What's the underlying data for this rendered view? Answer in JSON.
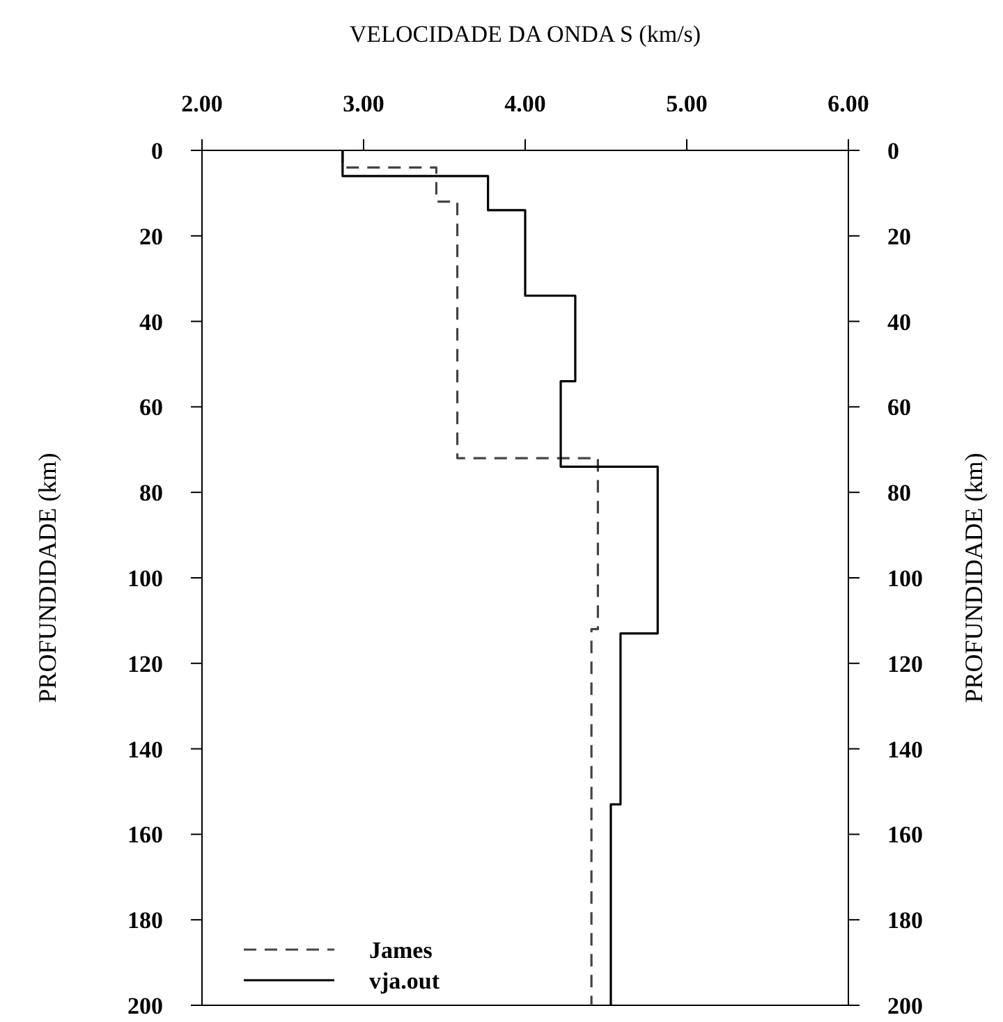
{
  "chart_data": {
    "type": "line",
    "title": "VELOCIDADE DA ONDA S (km/s)",
    "ylabel": "PROFUNDIDADE (km)",
    "y2label": "PROFUNDIDADE (km)",
    "xlim": [
      2,
      6
    ],
    "xticks": [
      {
        "value": 2,
        "label": "2.00"
      },
      {
        "value": 3,
        "label": "3.00"
      },
      {
        "value": 4,
        "label": "4.00"
      },
      {
        "value": 5,
        "label": "5.00"
      },
      {
        "value": 6,
        "label": "6.00"
      }
    ],
    "ylim": [
      200,
      0
    ],
    "yticks": [
      0,
      20,
      40,
      60,
      80,
      100,
      120,
      140,
      160,
      180,
      200
    ],
    "y2lim": [
      200,
      0
    ],
    "y2ticks": [
      0,
      20,
      40,
      60,
      80,
      100,
      120,
      140,
      160,
      180,
      200
    ],
    "legend": "bottom left",
    "grid": false,
    "series": [
      {
        "name": "James",
        "color": "#444444",
        "line_style": "dashed",
        "x": [
          2.87,
          2.87,
          3.45,
          3.45,
          3.58,
          3.58,
          4.45,
          4.45,
          4.41,
          4.41
        ],
        "values": [
          0,
          4,
          4,
          12,
          12,
          72,
          72,
          112,
          112,
          200
        ]
      },
      {
        "name": "vja.out",
        "color": "#000000",
        "line_style": "solid",
        "x": [
          2.87,
          2.87,
          3.77,
          3.77,
          4.0,
          4.0,
          4.31,
          4.31,
          4.22,
          4.22,
          4.82,
          4.82,
          4.59,
          4.59,
          4.53,
          4.53
        ],
        "values": [
          0,
          6,
          6,
          14,
          14,
          34,
          34,
          54,
          54,
          74,
          74,
          113,
          113,
          153,
          153,
          200
        ]
      }
    ]
  }
}
